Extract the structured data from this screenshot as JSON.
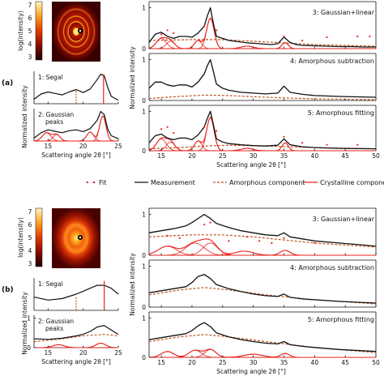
{
  "figure": {
    "legend": {
      "fit": "Fit",
      "measurement": "Measurement",
      "amorphous": "Amorphous component",
      "crystalline": "Crystalline component"
    },
    "colors": {
      "measurement": "#111111",
      "amorphous": "#c0541e",
      "crystalline": "#e8211d",
      "fit": "#e8211d"
    }
  },
  "chart_data": [
    {
      "id": "a",
      "panel_label": "(a)",
      "heatmap": {
        "type": "heatmap",
        "colorbar_label": "log(intensity)",
        "colorbar_ticks": [
          "3",
          "4",
          "5",
          "6",
          "7"
        ],
        "rings": "concentric diffraction rings, bright narrow rings"
      },
      "segal": {
        "type": "line",
        "label": "1: Segal",
        "x": [
          13,
          14,
          15,
          16,
          17,
          18,
          19,
          20,
          21,
          22,
          22.5,
          23,
          23.5,
          24,
          25
        ],
        "y": [
          0.15,
          0.33,
          0.4,
          0.35,
          0.3,
          0.4,
          0.48,
          0.38,
          0.5,
          0.82,
          1.0,
          0.95,
          0.55,
          0.25,
          0.12
        ],
        "markers_x": [
          19.0,
          22.9
        ]
      },
      "gaussian_peaks": {
        "type": "line",
        "label": "2: Gaussian peaks",
        "ylabel": "Normalized intensity",
        "xlabel": "Scattering angle 2θ [°]",
        "x_ticks": [
          "15",
          "20",
          "25"
        ],
        "xlim": [
          13,
          25
        ],
        "measurement": {
          "x": [
            13,
            14,
            15,
            16,
            17,
            18,
            19,
            20,
            21,
            22,
            22.5,
            23,
            23.5,
            24,
            25
          ],
          "y": [
            0.1,
            0.28,
            0.38,
            0.33,
            0.28,
            0.35,
            0.38,
            0.32,
            0.42,
            0.7,
            1.0,
            0.9,
            0.4,
            0.18,
            0.08
          ]
        },
        "peaks": [
          {
            "center": 14.8,
            "height": 0.28,
            "width": 0.6
          },
          {
            "center": 16.2,
            "height": 0.22,
            "width": 0.5
          },
          {
            "center": 21.0,
            "height": 0.3,
            "width": 0.5
          },
          {
            "center": 22.8,
            "height": 0.85,
            "width": 0.45
          }
        ]
      },
      "gaussian_linear": {
        "type": "line",
        "label": "3: Gaussian+linear",
        "y_ticks": [
          "0",
          "1"
        ],
        "measurement": {
          "x": [
            13,
            14,
            15,
            16,
            17,
            18,
            19,
            20,
            21,
            22,
            22.5,
            23,
            23.5,
            24,
            25,
            26,
            27,
            28,
            29,
            30,
            31,
            32,
            33,
            34,
            35,
            36,
            37,
            38,
            40,
            42,
            44,
            46,
            48,
            50
          ],
          "y": [
            0.15,
            0.35,
            0.4,
            0.3,
            0.25,
            0.3,
            0.3,
            0.28,
            0.38,
            0.55,
            0.8,
            1.0,
            0.6,
            0.3,
            0.25,
            0.2,
            0.18,
            0.16,
            0.14,
            0.13,
            0.12,
            0.11,
            0.1,
            0.12,
            0.28,
            0.15,
            0.1,
            0.08,
            0.07,
            0.06,
            0.05,
            0.05,
            0.04,
            0.04
          ]
        },
        "amorphous": {
          "x": [
            13,
            20,
            25,
            30,
            40,
            50
          ],
          "y": [
            0.2,
            0.22,
            0.22,
            0.18,
            0.1,
            0.06
          ]
        },
        "fit_points": {
          "x": [
            15,
            16,
            17,
            22,
            24,
            35,
            38,
            42,
            47,
            49
          ],
          "y": [
            0.35,
            0.45,
            0.38,
            0.55,
            0.45,
            0.3,
            0.2,
            0.28,
            0.3,
            0.3
          ]
        },
        "peaks": [
          {
            "center": 15.0,
            "height": 0.25,
            "width": 0.8
          },
          {
            "center": 16.5,
            "height": 0.18,
            "width": 0.7
          },
          {
            "center": 21.0,
            "height": 0.2,
            "width": 0.6
          },
          {
            "center": 23.0,
            "height": 0.75,
            "width": 0.6
          },
          {
            "center": 35.2,
            "height": 0.15,
            "width": 0.5
          },
          {
            "center": 29.0,
            "height": 0.06,
            "width": 1.0
          }
        ]
      },
      "amorphous_subtraction": {
        "type": "line",
        "label": "4: Amorphous subtraction",
        "ylabel": "Normalized intensity",
        "y_ticks": [
          "0",
          "1"
        ],
        "measurement": {
          "x": [
            13,
            14,
            15,
            16,
            17,
            18,
            19,
            20,
            21,
            22,
            22.5,
            23,
            23.5,
            24,
            25,
            26,
            28,
            30,
            32,
            34,
            35,
            36,
            38,
            40,
            44,
            50
          ],
          "y": [
            0.3,
            0.45,
            0.45,
            0.38,
            0.35,
            0.38,
            0.38,
            0.33,
            0.45,
            0.65,
            0.85,
            1.0,
            0.7,
            0.4,
            0.3,
            0.25,
            0.2,
            0.18,
            0.16,
            0.18,
            0.35,
            0.2,
            0.15,
            0.12,
            0.1,
            0.08
          ]
        },
        "amorphous": {
          "x": [
            13,
            18,
            22,
            26,
            32,
            40,
            50
          ],
          "y": [
            0.05,
            0.1,
            0.13,
            0.12,
            0.08,
            0.04,
            0.02
          ]
        }
      },
      "amorphous_fitting": {
        "type": "line",
        "label": "5: Amorphous fitting",
        "xlabel": "Scattering angle 2θ [°]",
        "x_ticks": [
          "15",
          "20",
          "25",
          "30",
          "35",
          "40",
          "45",
          "50"
        ],
        "y_ticks": [
          "0",
          "1"
        ],
        "xlim": [
          13,
          50
        ],
        "measurement": {
          "x": [
            13,
            14,
            15,
            16,
            17,
            18,
            19,
            20,
            21,
            22,
            22.5,
            23,
            23.5,
            24,
            25,
            26,
            28,
            30,
            32,
            34,
            35,
            36,
            38,
            40,
            44,
            50
          ],
          "y": [
            0.2,
            0.38,
            0.42,
            0.32,
            0.28,
            0.32,
            0.32,
            0.28,
            0.4,
            0.6,
            0.82,
            1.0,
            0.65,
            0.3,
            0.22,
            0.18,
            0.15,
            0.13,
            0.12,
            0.14,
            0.3,
            0.15,
            0.1,
            0.08,
            0.06,
            0.05
          ]
        },
        "amorphous": {
          "x": [
            13,
            18,
            22,
            26,
            32,
            40,
            50
          ],
          "y": [
            0.05,
            0.08,
            0.12,
            0.14,
            0.12,
            0.08,
            0.05
          ]
        },
        "fit_points": {
          "x": [
            15,
            16,
            17,
            22,
            24,
            35,
            38,
            42,
            47
          ],
          "y": [
            0.55,
            0.6,
            0.45,
            0.6,
            0.5,
            0.35,
            0.2,
            0.15,
            0.15
          ]
        },
        "peaks": [
          {
            "center": 15.0,
            "height": 0.3,
            "width": 0.8
          },
          {
            "center": 16.5,
            "height": 0.22,
            "width": 0.7
          },
          {
            "center": 21.0,
            "height": 0.25,
            "width": 0.6
          },
          {
            "center": 23.0,
            "height": 0.85,
            "width": 0.6
          },
          {
            "center": 35.2,
            "height": 0.2,
            "width": 0.5
          },
          {
            "center": 29.0,
            "height": 0.06,
            "width": 1.0
          }
        ]
      }
    },
    {
      "id": "b",
      "panel_label": "(b)",
      "heatmap": {
        "type": "heatmap",
        "colorbar_label": "log(intensity)",
        "colorbar_ticks": [
          "3",
          "4",
          "5",
          "6",
          "7"
        ],
        "rings": "diffuse broad halo"
      },
      "segal": {
        "type": "line",
        "label": "1: Segal",
        "x": [
          13,
          15,
          17,
          19,
          20,
          21,
          22,
          23,
          24,
          25
        ],
        "y": [
          0.45,
          0.35,
          0.4,
          0.55,
          0.65,
          0.75,
          0.85,
          0.85,
          0.75,
          0.55
        ],
        "markers_x": [
          19.0,
          23.0
        ]
      },
      "gaussian_peaks": {
        "type": "line",
        "label": "2: Gaussian peaks",
        "ylabel": "Normalized intensity",
        "xlabel": "Scattering angle 2θ [°]",
        "x_ticks": [
          "15",
          "20",
          "25"
        ],
        "y_ticks": [
          "0",
          "1"
        ],
        "xlim": [
          13,
          25
        ],
        "measurement": {
          "x": [
            13,
            15,
            17,
            19,
            20,
            21,
            22,
            23,
            24,
            25
          ],
          "y": [
            0.3,
            0.28,
            0.32,
            0.4,
            0.45,
            0.55,
            0.7,
            0.75,
            0.6,
            0.45
          ]
        },
        "amorphous": {
          "x": [
            13,
            17,
            20,
            23,
            25
          ],
          "y": [
            0.2,
            0.3,
            0.4,
            0.45,
            0.4
          ]
        },
        "peaks": [
          {
            "center": 16.5,
            "height": 0.1,
            "width": 0.8
          },
          {
            "center": 22.5,
            "height": 0.15,
            "width": 0.7
          }
        ]
      },
      "gaussian_linear": {
        "type": "line",
        "label": "3: Gaussian+linear",
        "y_ticks": [
          "0",
          "1"
        ],
        "measurement": {
          "x": [
            13,
            15,
            17,
            19,
            20,
            21,
            22,
            23,
            24,
            26,
            28,
            30,
            32,
            34,
            35,
            36,
            38,
            40,
            44,
            48,
            50
          ],
          "y": [
            0.55,
            0.6,
            0.65,
            0.72,
            0.8,
            0.9,
            1.0,
            0.9,
            0.78,
            0.68,
            0.6,
            0.55,
            0.5,
            0.48,
            0.55,
            0.45,
            0.4,
            0.35,
            0.3,
            0.25,
            0.22
          ]
        },
        "amorphous": {
          "x": [
            13,
            20,
            25,
            30,
            40,
            50
          ],
          "y": [
            0.45,
            0.5,
            0.5,
            0.45,
            0.3,
            0.2
          ]
        },
        "fit_points": {
          "x": [
            16,
            18,
            22,
            23,
            26,
            29,
            31,
            33,
            35,
            40
          ],
          "y": [
            0.48,
            0.42,
            0.75,
            0.8,
            0.35,
            0.45,
            0.35,
            0.3,
            0.42,
            0.3
          ]
        },
        "peaks": [
          {
            "center": 16.0,
            "height": 0.22,
            "width": 1.5
          },
          {
            "center": 20.5,
            "height": 0.3,
            "width": 1.5
          },
          {
            "center": 23.0,
            "height": 0.3,
            "width": 1.2
          },
          {
            "center": 35.2,
            "height": 0.12,
            "width": 0.8
          },
          {
            "center": 28.5,
            "height": 0.1,
            "width": 1.5
          }
        ]
      },
      "amorphous_subtraction": {
        "type": "line",
        "label": "4: Amorphous subtraction",
        "ylabel": "Normalized intensity",
        "y_ticks": [
          "0",
          "1"
        ],
        "measurement": {
          "x": [
            13,
            15,
            17,
            19,
            20,
            21,
            22,
            23,
            24,
            26,
            28,
            30,
            32,
            34,
            35,
            36,
            38,
            40,
            44,
            50
          ],
          "y": [
            0.35,
            0.4,
            0.45,
            0.5,
            0.6,
            0.75,
            0.8,
            0.7,
            0.55,
            0.45,
            0.38,
            0.32,
            0.28,
            0.26,
            0.32,
            0.24,
            0.2,
            0.18,
            0.14,
            0.1
          ]
        },
        "amorphous": {
          "x": [
            13,
            18,
            22,
            26,
            32,
            40,
            50
          ],
          "y": [
            0.3,
            0.42,
            0.48,
            0.42,
            0.3,
            0.18,
            0.08
          ]
        }
      },
      "amorphous_fitting": {
        "type": "line",
        "label": "5: Amorphous fitting",
        "xlabel": "Scattering angle 2θ [°]",
        "x_ticks": [
          "15",
          "20",
          "25",
          "30",
          "35",
          "40",
          "45",
          "50"
        ],
        "y_ticks": [
          "0",
          "1"
        ],
        "xlim": [
          13,
          50
        ],
        "measurement": {
          "x": [
            13,
            15,
            17,
            19,
            20,
            21,
            22,
            23,
            24,
            26,
            28,
            30,
            32,
            34,
            35,
            36,
            38,
            40,
            44,
            50
          ],
          "y": [
            0.45,
            0.5,
            0.55,
            0.6,
            0.68,
            0.8,
            0.88,
            0.78,
            0.62,
            0.52,
            0.45,
            0.4,
            0.36,
            0.34,
            0.4,
            0.32,
            0.28,
            0.25,
            0.2,
            0.15
          ]
        },
        "amorphous": {
          "x": [
            13,
            18,
            22,
            26,
            32,
            40,
            50
          ],
          "y": [
            0.4,
            0.52,
            0.58,
            0.52,
            0.4,
            0.25,
            0.12
          ]
        },
        "fit_points": {
          "x": [],
          "y": []
        },
        "peaks": [
          {
            "center": 16.0,
            "height": 0.15,
            "width": 1.0
          },
          {
            "center": 20.5,
            "height": 0.18,
            "width": 1.0
          },
          {
            "center": 23.0,
            "height": 0.2,
            "width": 0.9
          },
          {
            "center": 30.0,
            "height": 0.08,
            "width": 1.5
          },
          {
            "center": 35.2,
            "height": 0.1,
            "width": 0.7
          }
        ]
      }
    }
  ]
}
